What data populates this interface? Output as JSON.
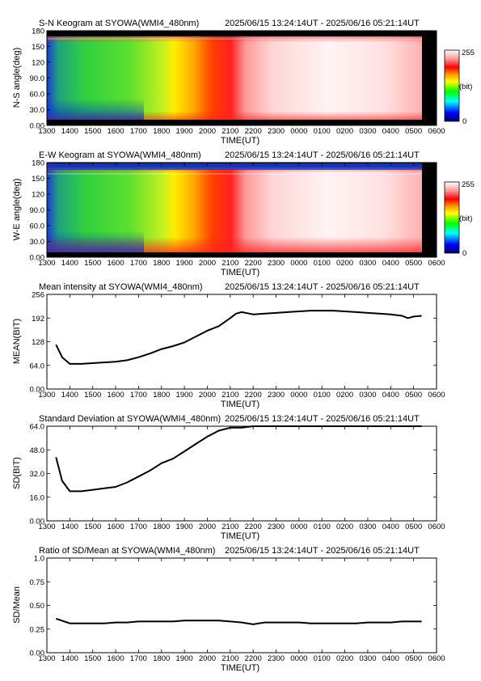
{
  "time_ticks": [
    "1300",
    "1400",
    "1500",
    "1600",
    "1700",
    "1800",
    "1900",
    "2000",
    "2100",
    "2200",
    "2300",
    "0000",
    "0100",
    "0200",
    "0300",
    "0400",
    "0500",
    "0600"
  ],
  "xlabel": "TIME(UT)",
  "colorbar": {
    "max_label": "255",
    "unit_label": "(bit)",
    "min_label": "0"
  },
  "colors": {
    "line": "#000000",
    "frame": "#000000"
  },
  "chart_data": [
    {
      "type": "heatmap",
      "title": "S-N Keogram at SYOWA(WMI4_480nm)",
      "time_range": "2025/06/15 13:24:14UT - 2025/06/16 05:21:14UT",
      "ylabel": "N-S angle(deg)",
      "yticks": [
        "0.00",
        "30.0",
        "60.0",
        "90.0",
        "120",
        "150",
        "180"
      ],
      "ylim": [
        0,
        180
      ],
      "x_range": [
        "1300",
        "0600"
      ],
      "value_range": [
        0,
        255
      ],
      "colormap": "rainbow-to-white"
    },
    {
      "type": "heatmap",
      "title": "E-W Keogram at SYOWA(WMI4_480nm)",
      "time_range": "2025/06/15 13:24:14UT - 2025/06/16 05:21:14UT",
      "ylabel": "W-E angle(deg)",
      "yticks": [
        "0.00",
        "30.0",
        "60.0",
        "90.0",
        "120",
        "150",
        "180"
      ],
      "ylim": [
        0,
        180
      ],
      "x_range": [
        "1300",
        "0600"
      ],
      "value_range": [
        0,
        255
      ],
      "colormap": "rainbow-to-white"
    },
    {
      "type": "line",
      "title": "Mean intensity at SYOWA(WMI4_480nm)",
      "time_range": "2025/06/15 13:24:14UT - 2025/06/16 05:21:14UT",
      "ylabel": "MEAN(BIT)",
      "yticks": [
        "0.00",
        "64.0",
        "128",
        "192",
        "256"
      ],
      "ylim": [
        0,
        256
      ],
      "x": [
        "1324",
        "1340",
        "1400",
        "1430",
        "1500",
        "1530",
        "1600",
        "1630",
        "1700",
        "1730",
        "1800",
        "1830",
        "1900",
        "1930",
        "2000",
        "2030",
        "2100",
        "2115",
        "2130",
        "2200",
        "2230",
        "2300",
        "2330",
        "0000",
        "0030",
        "0100",
        "0130",
        "0200",
        "0230",
        "0300",
        "0330",
        "0400",
        "0430",
        "0445",
        "0500",
        "0521"
      ],
      "y": [
        120,
        86,
        68,
        68,
        70,
        72,
        74,
        78,
        86,
        96,
        108,
        116,
        126,
        142,
        158,
        170,
        192,
        204,
        208,
        202,
        204,
        206,
        208,
        210,
        212,
        212,
        212,
        210,
        208,
        206,
        204,
        202,
        198,
        192,
        196,
        198
      ]
    },
    {
      "type": "line",
      "title": "Standard Deviation at SYOWA(WMI4_480nm)",
      "time_range": "2025/06/15 13:24:14UT - 2025/06/16 05:21:14UT",
      "ylabel": "SD(BIT)",
      "yticks": [
        "0.00",
        "16.0",
        "32.0",
        "48.0",
        "64.0"
      ],
      "ylim": [
        0,
        64
      ],
      "x": [
        "1324",
        "1340",
        "1400",
        "1430",
        "1500",
        "1530",
        "1600",
        "1630",
        "1700",
        "1730",
        "1800",
        "1830",
        "1900",
        "1930",
        "2000",
        "2030",
        "2100",
        "2130",
        "2200",
        "2230",
        "2300",
        "2330",
        "0000",
        "0030",
        "0100",
        "0130",
        "0200",
        "0230",
        "0300",
        "0330",
        "0400",
        "0430",
        "0500",
        "0521"
      ],
      "y": [
        43,
        27,
        20,
        20,
        21,
        22,
        23,
        26,
        30,
        34,
        39,
        42,
        47,
        52,
        57,
        61,
        63,
        63,
        64,
        64,
        64,
        64,
        64,
        64,
        64,
        64,
        64,
        64,
        64,
        64,
        64,
        64,
        64,
        64
      ]
    },
    {
      "type": "line",
      "title": "Ratio of SD/Mean at SYOWA(WMI4_480nm)",
      "time_range": "2025/06/15 13:24:14UT - 2025/06/16 05:21:14UT",
      "ylabel": "SD/Mean",
      "yticks": [
        "0.00",
        "0.25",
        "0.50",
        "0.75",
        "1.0"
      ],
      "ylim": [
        0,
        1
      ],
      "x": [
        "1324",
        "1400",
        "1430",
        "1500",
        "1530",
        "1600",
        "1630",
        "1700",
        "1730",
        "1800",
        "1830",
        "1900",
        "1930",
        "2000",
        "2030",
        "2100",
        "2130",
        "2200",
        "2230",
        "2300",
        "2330",
        "0000",
        "0030",
        "0100",
        "0130",
        "0200",
        "0230",
        "0300",
        "0330",
        "0400",
        "0430",
        "0500",
        "0521"
      ],
      "y": [
        0.36,
        0.31,
        0.31,
        0.31,
        0.31,
        0.32,
        0.32,
        0.33,
        0.33,
        0.33,
        0.33,
        0.34,
        0.34,
        0.34,
        0.34,
        0.33,
        0.32,
        0.3,
        0.32,
        0.32,
        0.32,
        0.32,
        0.31,
        0.31,
        0.31,
        0.31,
        0.31,
        0.32,
        0.32,
        0.32,
        0.33,
        0.33,
        0.33
      ]
    }
  ]
}
